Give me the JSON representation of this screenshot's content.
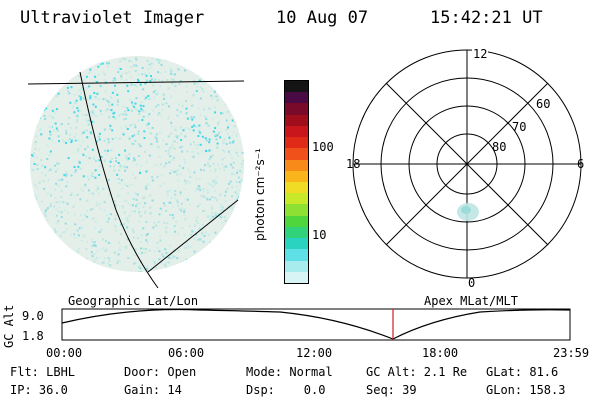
{
  "header": {
    "instrument": "Ultraviolet Imager",
    "date": "10 Aug 07",
    "time": "15:42:21 UT"
  },
  "colorbar": {
    "unit_label": "photon cm⁻²s⁻¹",
    "ticks": [
      "100",
      "10"
    ],
    "colors": [
      "#141414",
      "#4a0a44",
      "#7a0a2a",
      "#a00e1c",
      "#c8161c",
      "#e02a18",
      "#f0501a",
      "#f88a1a",
      "#fab51c",
      "#f0dc24",
      "#c8e82a",
      "#8ee032",
      "#4ed63c",
      "#30d27a",
      "#2ad2c0",
      "#5ee0e6",
      "#a8ecee",
      "#d8f4f4"
    ]
  },
  "polar": {
    "labels": {
      "top": "12",
      "left": "18",
      "right": "6",
      "bottom": "0"
    },
    "lat_labels": [
      "60",
      "70",
      "80"
    ]
  },
  "panel_labels": {
    "left": "Geographic Lat/Lon",
    "right": "Apex MLat/MLT"
  },
  "timeline": {
    "y_axis": "GC Alt",
    "y_max": "9.0",
    "y_min": "1.8",
    "x_ticks": [
      "00:00",
      "06:00",
      "12:00",
      "18:00",
      "23:59"
    ],
    "cursor_color": "#cc2222"
  },
  "info": [
    [
      "Flt: LBHL",
      "Door: Open",
      "Mode: Normal",
      "GC Alt: 2.1 Re",
      "GLat: 81.6"
    ],
    [
      "IP: 36.0",
      "Gain: 14",
      "Dsp:    0.0",
      "Seq: 39",
      "GLon: 158.3"
    ]
  ]
}
